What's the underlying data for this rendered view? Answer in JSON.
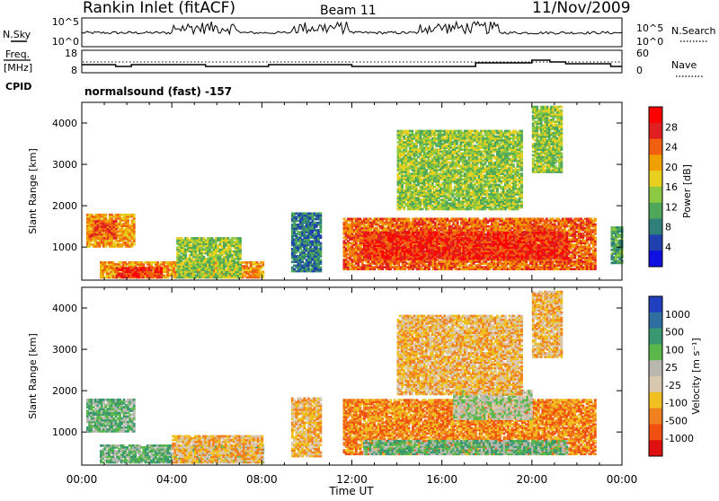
{
  "header": {
    "station": "Rankin Inlet (fitACF)",
    "beam": "Beam 11",
    "date": "11/Nov/2009"
  },
  "top_panels": {
    "nsky_label": "N.Sky",
    "nsky_ticks": [
      "10^5",
      "10^0"
    ],
    "nsearch_label": "N.Search",
    "nsearch_ticks": [
      "10^5",
      "10^0"
    ],
    "freq_label": "Freq.",
    "freq_unit": "[MHz]",
    "freq_ticks": [
      "18",
      "8"
    ],
    "nave_label": "Nave",
    "nave_ticks": [
      "60",
      "0"
    ],
    "cpid_label": "CPID",
    "cpid_text": "normalsound (fast) -157"
  },
  "colors": {
    "power_scale": [
      "#1010e0",
      "#2040b0",
      "#2f7f7a",
      "#4fa85a",
      "#8cc840",
      "#e8d020",
      "#f0a000",
      "#f06010",
      "#e02020",
      "#ff0000"
    ],
    "velocity_scale": [
      "#2040c0",
      "#2f6fa0",
      "#3a9870",
      "#5ab84a",
      "#b8b8b0",
      "#d8c8b0",
      "#f0c020",
      "#f08020",
      "#f05010",
      "#e01010"
    ]
  },
  "chart_data": [
    {
      "type": "heatmap",
      "title": "Power",
      "ylabel": "Slant Range [km]",
      "xlabel": "Time UT",
      "x_ticks": [
        "00:00",
        "04:00",
        "08:00",
        "12:00",
        "16:00",
        "20:00",
        "00:00"
      ],
      "y_ticks": [
        1000,
        2000,
        3000,
        4000
      ],
      "ylim": [
        200,
        4500
      ],
      "xlim_hours": [
        0,
        24
      ],
      "colorbar_label": "Power [dB]",
      "colorbar_ticks": [
        "4",
        "8",
        "12",
        "16",
        "20",
        "24",
        "28"
      ],
      "colorbar_range": [
        0,
        32
      ],
      "regions": [
        {
          "t0": 0.2,
          "t1": 2.3,
          "r0": 1000,
          "r1": 1800,
          "value": 20
        },
        {
          "t0": 0.3,
          "t1": 1.5,
          "r0": 1200,
          "r1": 1650,
          "value": 26
        },
        {
          "t0": 0.8,
          "t1": 8.0,
          "r0": 250,
          "r1": 620,
          "value": 22
        },
        {
          "t0": 1.5,
          "t1": 3.5,
          "r0": 250,
          "r1": 520,
          "value": 28
        },
        {
          "t0": 4.2,
          "t1": 7.0,
          "r0": 250,
          "r1": 1200,
          "value": 14
        },
        {
          "t0": 9.3,
          "t1": 10.6,
          "r0": 400,
          "r1": 1800,
          "value": 8
        },
        {
          "t0": 11.6,
          "t1": 22.8,
          "r0": 450,
          "r1": 1700,
          "value": 24
        },
        {
          "t0": 12.5,
          "t1": 21.5,
          "r0": 700,
          "r1": 1350,
          "value": 28
        },
        {
          "t0": 14.0,
          "t1": 19.5,
          "r0": 1900,
          "r1": 3800,
          "value": 14
        },
        {
          "t0": 20.0,
          "t1": 21.3,
          "r0": 2800,
          "r1": 4400,
          "value": 14
        },
        {
          "t0": 23.5,
          "t1": 24.0,
          "r0": 600,
          "r1": 1500,
          "value": 10
        }
      ]
    },
    {
      "type": "heatmap",
      "title": "Velocity",
      "ylabel": "Slant Range [km]",
      "xlabel": "Time UT",
      "x_ticks": [
        "00:00",
        "04:00",
        "08:00",
        "12:00",
        "16:00",
        "20:00",
        "00:00"
      ],
      "y_ticks": [
        1000,
        2000,
        3000,
        4000
      ],
      "ylim": [
        200,
        4500
      ],
      "xlim_hours": [
        0,
        24
      ],
      "colorbar_label": "Velocity [m s⁻¹]",
      "colorbar_ticks": [
        "1000",
        "500",
        "100",
        "25",
        "-25",
        "-100",
        "-500",
        "-1000"
      ],
      "regions": [
        {
          "t0": 0.2,
          "t1": 2.3,
          "r0": 1000,
          "r1": 1800,
          "value": 100
        },
        {
          "t0": 0.8,
          "t1": 8.0,
          "r0": 250,
          "r1": 700,
          "value": 100
        },
        {
          "t0": 4.0,
          "t1": 8.0,
          "r0": 250,
          "r1": 900,
          "value": -100
        },
        {
          "t0": 9.3,
          "t1": 10.6,
          "r0": 400,
          "r1": 1800,
          "value": -100
        },
        {
          "t0": 11.6,
          "t1": 22.8,
          "r0": 450,
          "r1": 1800,
          "value": -500
        },
        {
          "t0": 16.5,
          "t1": 20.0,
          "r0": 1300,
          "r1": 2000,
          "value": 0
        },
        {
          "t0": 12.5,
          "t1": 21.5,
          "r0": 450,
          "r1": 800,
          "value": 100
        },
        {
          "t0": 14.0,
          "t1": 19.5,
          "r0": 1900,
          "r1": 3800,
          "value": -100
        },
        {
          "t0": 20.0,
          "t1": 21.3,
          "r0": 2800,
          "r1": 4400,
          "value": -100
        }
      ]
    }
  ]
}
